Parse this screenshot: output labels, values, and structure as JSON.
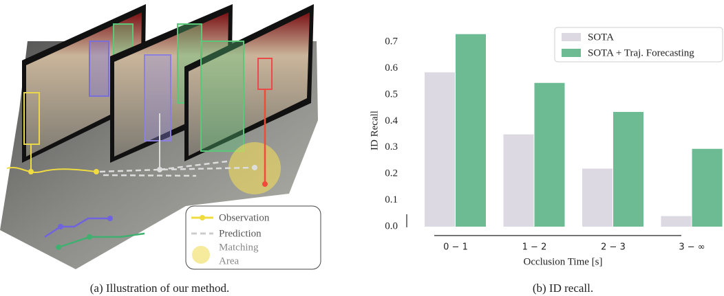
{
  "illustration": {
    "legend": {
      "observation": "Observation",
      "prediction": "Prediction",
      "matching_area": [
        "Matching",
        "Area"
      ]
    }
  },
  "captions": [
    "(a) Illustration of our method.",
    "(b) ID recall."
  ],
  "chart_data": {
    "type": "bar",
    "categories": [
      "0 − 1",
      "1 − 2",
      "2 − 3",
      "3 − ∞"
    ],
    "series": [
      {
        "name": "SOTA",
        "color": "#dcd9e2",
        "values": [
          0.585,
          0.35,
          0.22,
          0.04
        ]
      },
      {
        "name": "SOTA + Traj. Forecasting",
        "color": "#6dbb93",
        "values": [
          0.73,
          0.545,
          0.435,
          0.295
        ]
      }
    ],
    "ylabel": "ID Recall",
    "xlabel": "Occlusion Time [s]",
    "ylim": [
      0,
      0.75
    ],
    "yticks": [
      {
        "value": 0,
        "label": "0.0"
      },
      0.1,
      0.2,
      0.3,
      0.4,
      0.5,
      0.6,
      0.7
    ],
    "grid": false,
    "legend": "upper right"
  }
}
